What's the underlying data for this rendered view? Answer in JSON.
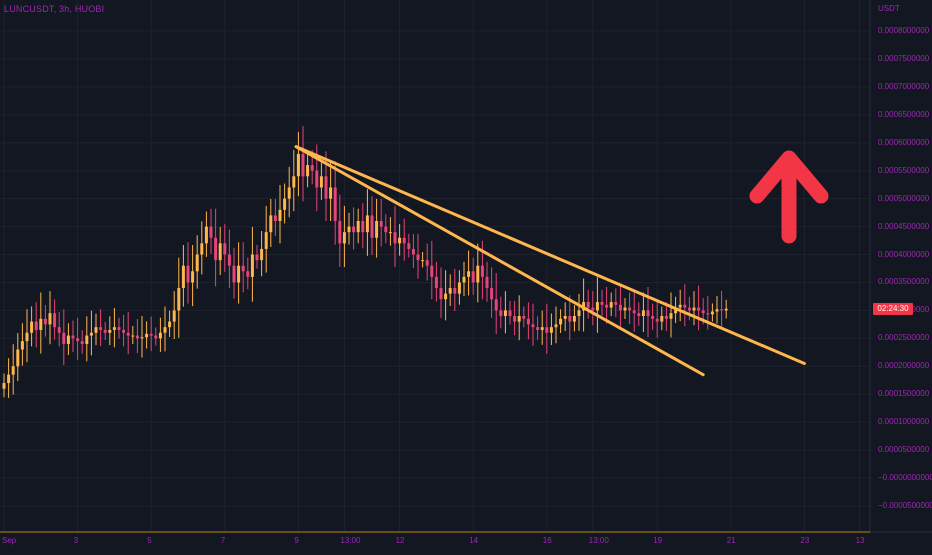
{
  "chart_data": {
    "type": "candlestick",
    "title": "LUNCUSDT, 3h, HUOBI",
    "currency": "USDT",
    "current_price_countdown": "02:24:30",
    "ylim": [
      -7e-05,
      0.00085
    ],
    "y_ticks": [
      {
        "value": 0.0008,
        "label": "0.0008000000"
      },
      {
        "value": 0.00075,
        "label": "0.0007500000"
      },
      {
        "value": 0.0007,
        "label": "0.0007000000"
      },
      {
        "value": 0.00065,
        "label": "0.0006500000"
      },
      {
        "value": 0.0006,
        "label": "0.0006000000"
      },
      {
        "value": 0.00055,
        "label": "0.0005500000"
      },
      {
        "value": 0.0005,
        "label": "0.0005000000"
      },
      {
        "value": 0.00045,
        "label": "0.0004500000"
      },
      {
        "value": 0.0004,
        "label": "0.0004000000"
      },
      {
        "value": 0.00035,
        "label": "0.0003500000"
      },
      {
        "value": 0.0003,
        "label": "0.0003000000"
      },
      {
        "value": 0.00025,
        "label": "0.0002500000"
      },
      {
        "value": 0.0002,
        "label": "0.0002000000"
      },
      {
        "value": 0.00015,
        "label": "0.0001500000"
      },
      {
        "value": 0.0001,
        "label": "0.0001000000"
      },
      {
        "value": 5e-05,
        "label": "0.0000500000"
      },
      {
        "value": 0,
        "label": "−0.0000000000"
      },
      {
        "value": -5e-05,
        "label": "−0.0000500000"
      }
    ],
    "x_ticks": [
      {
        "label": "Sep",
        "index": 0
      },
      {
        "label": "3",
        "index": 16
      },
      {
        "label": "5",
        "index": 32
      },
      {
        "label": "7",
        "index": 48
      },
      {
        "label": "9",
        "index": 64
      },
      {
        "label": "13:00",
        "index": 74
      },
      {
        "label": "12",
        "index": 86
      },
      {
        "label": "14",
        "index": 102
      },
      {
        "label": "16",
        "index": 118
      },
      {
        "label": "13:00",
        "index": 128
      },
      {
        "label": "19",
        "index": 142
      },
      {
        "label": "21",
        "index": 158
      },
      {
        "label": "23",
        "index": 174
      },
      {
        "label": "13",
        "index": 186
      }
    ],
    "closes": [
      0.00017,
      0.000185,
      0.0002,
      0.00023,
      0.000245,
      0.00026,
      0.00028,
      0.000265,
      0.000285,
      0.000275,
      0.000295,
      0.00027,
      0.00026,
      0.00024,
      0.000255,
      0.00025,
      0.000245,
      0.00024,
      0.000255,
      0.00026,
      0.00027,
      0.000265,
      0.00026,
      0.000265,
      0.00027,
      0.000265,
      0.00026,
      0.000255,
      0.000255,
      0.00025,
      0.000252,
      0.000258,
      0.000255,
      0.00025,
      0.00026,
      0.00027,
      0.00028,
      0.0003,
      0.00034,
      0.00038,
      0.00035,
      0.00037,
      0.0004,
      0.00042,
      0.00045,
      0.00043,
      0.00039,
      0.00042,
      0.0004,
      0.00038,
      0.00035,
      0.00038,
      0.00037,
      0.00036,
      0.0004,
      0.00039,
      0.00041,
      0.00044,
      0.00047,
      0.00046,
      0.00048,
      0.0005,
      0.00052,
      0.00054,
      0.00058,
      0.00054,
      0.00056,
      0.00055,
      0.00052,
      0.00054,
      0.0005,
      0.00052,
      0.00046,
      0.00042,
      0.00044,
      0.00045,
      0.00044,
      0.00046,
      0.00044,
      0.00047,
      0.00043,
      0.00046,
      0.00045,
      0.00044,
      0.00044,
      0.00042,
      0.00043,
      0.00042,
      0.00041,
      0.0004,
      0.00039,
      0.00039,
      0.00038,
      0.00036,
      0.00034,
      0.00032,
      0.00033,
      0.00034,
      0.00033,
      0.00035,
      0.00036,
      0.00037,
      0.00035,
      0.00038,
      0.00036,
      0.00034,
      0.00032,
      0.0003,
      0.00029,
      0.0003,
      0.00029,
      0.00028,
      0.00029,
      0.000285,
      0.000275,
      0.00027,
      0.000265,
      0.00027,
      0.00026,
      0.00027,
      0.000275,
      0.000285,
      0.00029,
      0.00028,
      0.00029,
      0.0003,
      0.000315,
      0.000305,
      0.0003,
      0.000315,
      0.00031,
      0.000305,
      0.000315,
      0.00031,
      0.0003,
      0.000305,
      0.0003,
      0.000295,
      0.00029,
      0.0003,
      0.00029,
      0.000285,
      0.00028,
      0.00029,
      0.000285,
      0.000295,
      0.000305,
      0.00031,
      0.000305,
      0.0003,
      0.000305,
      0.0003,
      0.000295,
      0.000293,
      0.000298,
      0.000302,
      0.0003,
      0.000303
    ],
    "trendlines": [
      {
        "from": {
          "index": 63.5,
          "price": 0.000593
        },
        "to": {
          "index": 152,
          "price": 0.000185
        }
      },
      {
        "from": {
          "index": 63.5,
          "price": 0.000593
        },
        "to": {
          "index": 174,
          "price": 0.000205
        }
      }
    ],
    "colors": {
      "background": "#131722",
      "grid": "#1e222d",
      "up_candle": "#ffb74d",
      "down_candle": "#e6447a",
      "trendline": "#ffb74d",
      "arrow": "#f23645",
      "axis_text": "#9c27b0",
      "price_tag": "#f23645"
    },
    "annotations": [
      {
        "type": "arrow",
        "direction": "up",
        "color": "#f23645"
      }
    ]
  }
}
